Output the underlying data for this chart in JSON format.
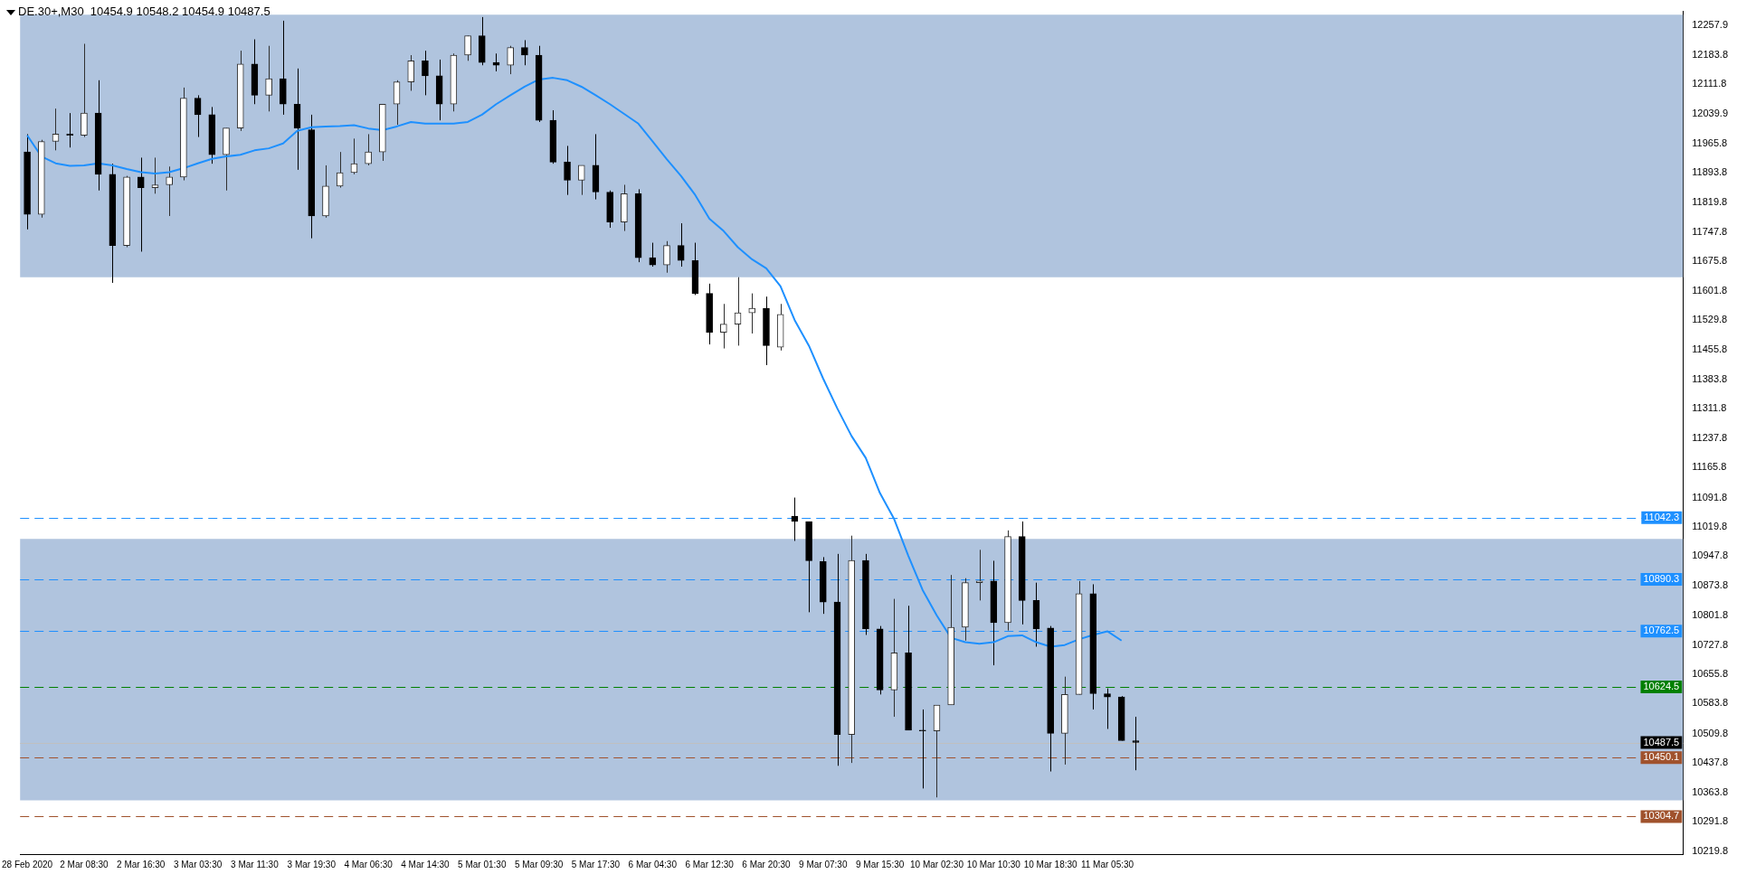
{
  "chart_data": {
    "type": "candlestick",
    "title": "DE.30+,M30  10454.9 10548.2 10454.9 10487.5",
    "colors": [
      "#000000",
      "#303030",
      "#303030",
      "#000000",
      "#303030",
      "#000000",
      "#000000",
      "#303030",
      "#000000",
      "#303030",
      "#303030",
      "#303030",
      "#000000",
      "#000000",
      "#303030",
      "#303030",
      "#000000",
      "#303030",
      "#000000",
      "#000000",
      "#000000",
      "#303030",
      "#303030",
      "#303030",
      "#303030",
      "#303030",
      "#303030",
      "#303030",
      "#000000",
      "#000000",
      "#303030",
      "#303030",
      "#000000",
      "#000000",
      "#303030",
      "#000000",
      "#000000",
      "#000000",
      "#000000",
      "#303030",
      "#000000",
      "#000000",
      "#303030",
      "#000000",
      "#000000",
      "#303030",
      "#000000",
      "#000000",
      "#000000",
      "#303030",
      "#303030",
      "#303030",
      "#000000",
      "#303030",
      "#000000",
      "#000000",
      "#000000",
      "#000000",
      "#303030",
      "#000000",
      "#000000",
      "#303030",
      "#000000",
      "#000000",
      "#303030",
      "#303030",
      "#303030",
      "#303030",
      "#000000",
      "#303030",
      "#000000",
      "#000000",
      "#000000",
      "#303030",
      "#303030",
      "#000000",
      "#000000",
      "#000000",
      "#000000",
      null,
      null,
      null,
      null,
      null,
      null,
      null,
      null,
      null,
      null,
      null,
      null,
      null,
      null,
      null,
      null,
      null,
      null,
      null,
      null,
      null,
      null,
      null,
      null,
      null,
      null,
      null,
      null,
      null,
      null,
      null,
      null,
      null,
      null,
      null,
      null,
      null,
      null
    ],
    "categories": [
      "28 Feb 2020",
      null,
      null,
      null,
      "2 Mar 08:30",
      null,
      null,
      null,
      "2 Mar 16:30",
      null,
      null,
      null,
      "3 Mar 03:30",
      null,
      null,
      null,
      "3 Mar 11:30",
      null,
      null,
      null,
      "3 Mar 19:30",
      null,
      null,
      null,
      "4 Mar 06:30",
      null,
      null,
      null,
      "4 Mar 14:30",
      null,
      null,
      null,
      "5 Mar 01:30",
      null,
      null,
      null,
      "5 Mar 09:30",
      null,
      null,
      null,
      "5 Mar 17:30",
      null,
      null,
      null,
      "6 Mar 04:30",
      null,
      null,
      null,
      "6 Mar 12:30",
      null,
      null,
      null,
      "6 Mar 20:30",
      null,
      null,
      null,
      "9 Mar 07:30",
      null,
      null,
      null,
      "9 Mar 15:30",
      null,
      null,
      null,
      "10 Mar 02:30",
      null,
      null,
      null,
      "10 Mar 10:30",
      null,
      null,
      null,
      "10 Mar 18:30",
      null,
      null,
      null,
      "11 Mar 05:30",
      null,
      null,
      null,
      null,
      null,
      null,
      null,
      null,
      null,
      null,
      null,
      null,
      null,
      null,
      null,
      null,
      null,
      null,
      null,
      null,
      null,
      null,
      null,
      null,
      null,
      null,
      null,
      null,
      null,
      null,
      null,
      null,
      null,
      null,
      null,
      null,
      null,
      null,
      null,
      null
    ],
    "ohlc": [
      [
        11945,
        11989,
        11754,
        11791
      ],
      [
        11791,
        11975,
        11783,
        11971
      ],
      [
        11971,
        12052,
        11949,
        11989
      ],
      [
        11989,
        12041,
        11956,
        11986
      ],
      [
        11986,
        12212,
        11982,
        12041
      ],
      [
        12041,
        12122,
        11850,
        11890
      ],
      [
        11890,
        11916,
        11622,
        11714
      ],
      [
        11714,
        11886,
        11710,
        11883
      ],
      [
        11883,
        11931,
        11699,
        11857
      ],
      [
        11857,
        11931,
        11842,
        11864
      ],
      [
        11864,
        11909,
        11787,
        11883
      ],
      [
        11883,
        12104,
        11875,
        12078
      ],
      [
        12078,
        12085,
        11982,
        12037
      ],
      [
        12037,
        12056,
        11916,
        11938
      ],
      [
        11938,
        12004,
        11850,
        12004
      ],
      [
        12004,
        12195,
        11997,
        12162
      ],
      [
        12162,
        12223,
        12063,
        12085
      ],
      [
        12085,
        12207,
        12045,
        12126
      ],
      [
        12126,
        12269,
        12037,
        12063
      ],
      [
        12063,
        12151,
        11901,
        12004
      ],
      [
        12000,
        12037,
        11732,
        11787
      ],
      [
        11787,
        11912,
        11783,
        11861
      ],
      [
        11861,
        11945,
        11857,
        11894
      ],
      [
        11894,
        11978,
        11890,
        11916
      ],
      [
        11916,
        11989,
        11912,
        11945
      ],
      [
        11945,
        12063,
        11923,
        12063
      ],
      [
        12063,
        12122,
        12012,
        12118
      ],
      [
        12118,
        12184,
        12096,
        12170
      ],
      [
        12170,
        12195,
        12085,
        12133
      ],
      [
        12133,
        12173,
        12023,
        12063
      ],
      [
        12063,
        12188,
        12045,
        12184
      ],
      [
        12184,
        12232,
        12170,
        12232
      ],
      [
        12232,
        12278,
        12159,
        12166
      ],
      [
        12166,
        12188,
        12144,
        12159
      ],
      [
        12159,
        12207,
        12137,
        12203
      ],
      [
        12203,
        12221,
        12159,
        12184
      ],
      [
        12184,
        12207,
        12019,
        12023
      ],
      [
        12023,
        12048,
        11916,
        11920
      ],
      [
        11920,
        11960,
        11839,
        11875
      ],
      [
        11875,
        11912,
        11839,
        11912
      ],
      [
        11912,
        11989,
        11828,
        11846
      ],
      [
        11846,
        11850,
        11758,
        11772
      ],
      [
        11772,
        11864,
        11750,
        11842
      ],
      [
        11842,
        11853,
        11673,
        11684
      ],
      [
        11684,
        11721,
        11662,
        11666
      ],
      [
        11666,
        11725,
        11647,
        11714
      ],
      [
        11714,
        11769,
        11662,
        11677
      ],
      [
        11677,
        11721,
        11592,
        11596
      ],
      [
        11596,
        11620,
        11470,
        11500
      ],
      [
        11500,
        11570,
        11460,
        11520
      ],
      [
        11520,
        11636,
        11467,
        11548
      ],
      [
        11548,
        11596,
        11497,
        11559
      ],
      [
        11559,
        11588,
        11419,
        11467
      ],
      [
        11463,
        11570,
        11455,
        11544
      ],
      [
        11046,
        11092,
        10985,
        11033
      ],
      [
        11033,
        11033,
        10809,
        10936
      ],
      [
        10934,
        10945,
        10805,
        10834
      ],
      [
        10834,
        10953,
        10430,
        10507
      ],
      [
        10507,
        10998,
        10437,
        10937
      ],
      [
        10937,
        10953,
        10753,
        10768
      ],
      [
        10768,
        10775,
        10606,
        10617
      ],
      [
        10617,
        10842,
        10551,
        10709
      ],
      [
        10709,
        10825,
        10518,
        10518
      ],
      [
        10518,
        10569,
        10374,
        10516
      ],
      [
        10516,
        10580,
        10352,
        10580
      ],
      [
        10580,
        10901,
        10580,
        10772
      ],
      [
        10772,
        10893,
        10739,
        10882
      ],
      [
        10882,
        10963,
        10838,
        10886
      ],
      [
        10886,
        10936,
        10678,
        10783
      ],
      [
        10783,
        11011,
        10764,
        10996
      ],
      [
        10996,
        11033,
        10779,
        10838
      ],
      [
        10838,
        10882,
        10724,
        10768
      ],
      [
        10770,
        10775,
        10416,
        10510
      ],
      [
        10510,
        10650,
        10433,
        10606
      ],
      [
        10606,
        10886,
        10606,
        10855
      ],
      [
        10855,
        10878,
        10569,
        10608
      ],
      [
        10608,
        10621,
        10521,
        10600
      ],
      [
        10600,
        10602,
        10492,
        10492
      ],
      [
        10492,
        10551,
        10419,
        10487.5
      ],
      null,
      null,
      null,
      null,
      null,
      null,
      null,
      null,
      null,
      null,
      null,
      null,
      null,
      null,
      null,
      null,
      null,
      null,
      null,
      null,
      null,
      null,
      null,
      null,
      null,
      null,
      null,
      null,
      null,
      null,
      null,
      null,
      null,
      null,
      null,
      null,
      null,
      null
    ],
    "series": [
      {
        "type": "line",
        "color": "#1e90ff",
        "values": [
          11986,
          11934,
          11917,
          11911,
          11912,
          11917,
          11912,
          11903,
          11895,
          11892,
          11895,
          11905,
          11917,
          11928,
          11934,
          11938,
          11949,
          11954,
          11966,
          11997,
          12006,
          12008,
          12009,
          12011,
          12003,
          11999,
          12008,
          12019,
          12015,
          12015,
          12015,
          12019,
          12037,
          12063,
          12085,
          12106,
          12124,
          12128,
          12122,
          12106,
          12085,
          12063,
          12039,
          12015,
          11971,
          11927,
          11886,
          11839,
          11780,
          11750,
          11710,
          11680,
          11658,
          11614,
          11530,
          11467,
          11386,
          11312,
          11244,
          11190,
          11103,
          11039,
          10948,
          10864,
          10801,
          10746,
          10735,
          10731,
          10735,
          10750,
          10752,
          10735,
          10724,
          10728,
          10742,
          10753,
          10762,
          10739,
          null,
          null,
          null,
          null,
          null,
          null,
          null,
          null,
          null,
          null,
          null,
          null,
          null,
          null,
          null,
          null,
          null,
          null,
          null,
          null,
          null,
          null,
          null,
          null,
          null,
          null,
          null,
          null,
          null,
          null,
          null,
          null,
          null,
          null,
          null,
          null,
          null,
          null,
          null
        ]
      }
    ],
    "ylim": [
      10212,
      12292
    ],
    "yticks": [
      12257.9,
      12183.8,
      12111.8,
      12039.9,
      11965.8,
      11893.8,
      11819.8,
      11747.8,
      11675.8,
      11601.8,
      11529.8,
      11455.8,
      11383.8,
      11311.8,
      11237.8,
      11165.8,
      11091.8,
      11019.8,
      10947.8,
      10873.8,
      10801.8,
      10727.8,
      10655.8,
      10583.8,
      10509.8,
      10437.8,
      10363.8,
      10291.8,
      10219.8
    ],
    "bands": [
      {
        "axis": "y",
        "from": 11636,
        "to": 12284,
        "color": "#b0c4de"
      },
      {
        "axis": "y",
        "from": 10345,
        "to": 10990,
        "color": "#b0c4de"
      }
    ],
    "ref_lines": [
      {
        "axis": "y",
        "value": 11042.3,
        "label": "11042.3",
        "color": "#1e90ff",
        "line_style": "dashed"
      },
      {
        "axis": "y",
        "value": 10890.3,
        "label": "10890.3",
        "color": "#1e90ff",
        "line_style": "dashed"
      },
      {
        "axis": "y",
        "value": 10762.5,
        "label": "10762.5",
        "color": "#1e90ff",
        "line_style": "dashed"
      },
      {
        "axis": "y",
        "value": 10624.5,
        "label": "10624.5",
        "color": "#008000",
        "line_style": "dashed"
      },
      {
        "axis": "y",
        "value": 10487.5,
        "label": "10487.5",
        "color": "#c0c0c0",
        "line_style": "solid"
      },
      {
        "axis": "y",
        "value": 10450.1,
        "label": "10450.1",
        "color": "#a0522d",
        "line_style": "dashed"
      },
      {
        "axis": "y",
        "value": 10304.7,
        "label": "10304.7",
        "color": "#a0522d",
        "line_style": "dashed"
      }
    ],
    "grid": false,
    "legend": false
  }
}
